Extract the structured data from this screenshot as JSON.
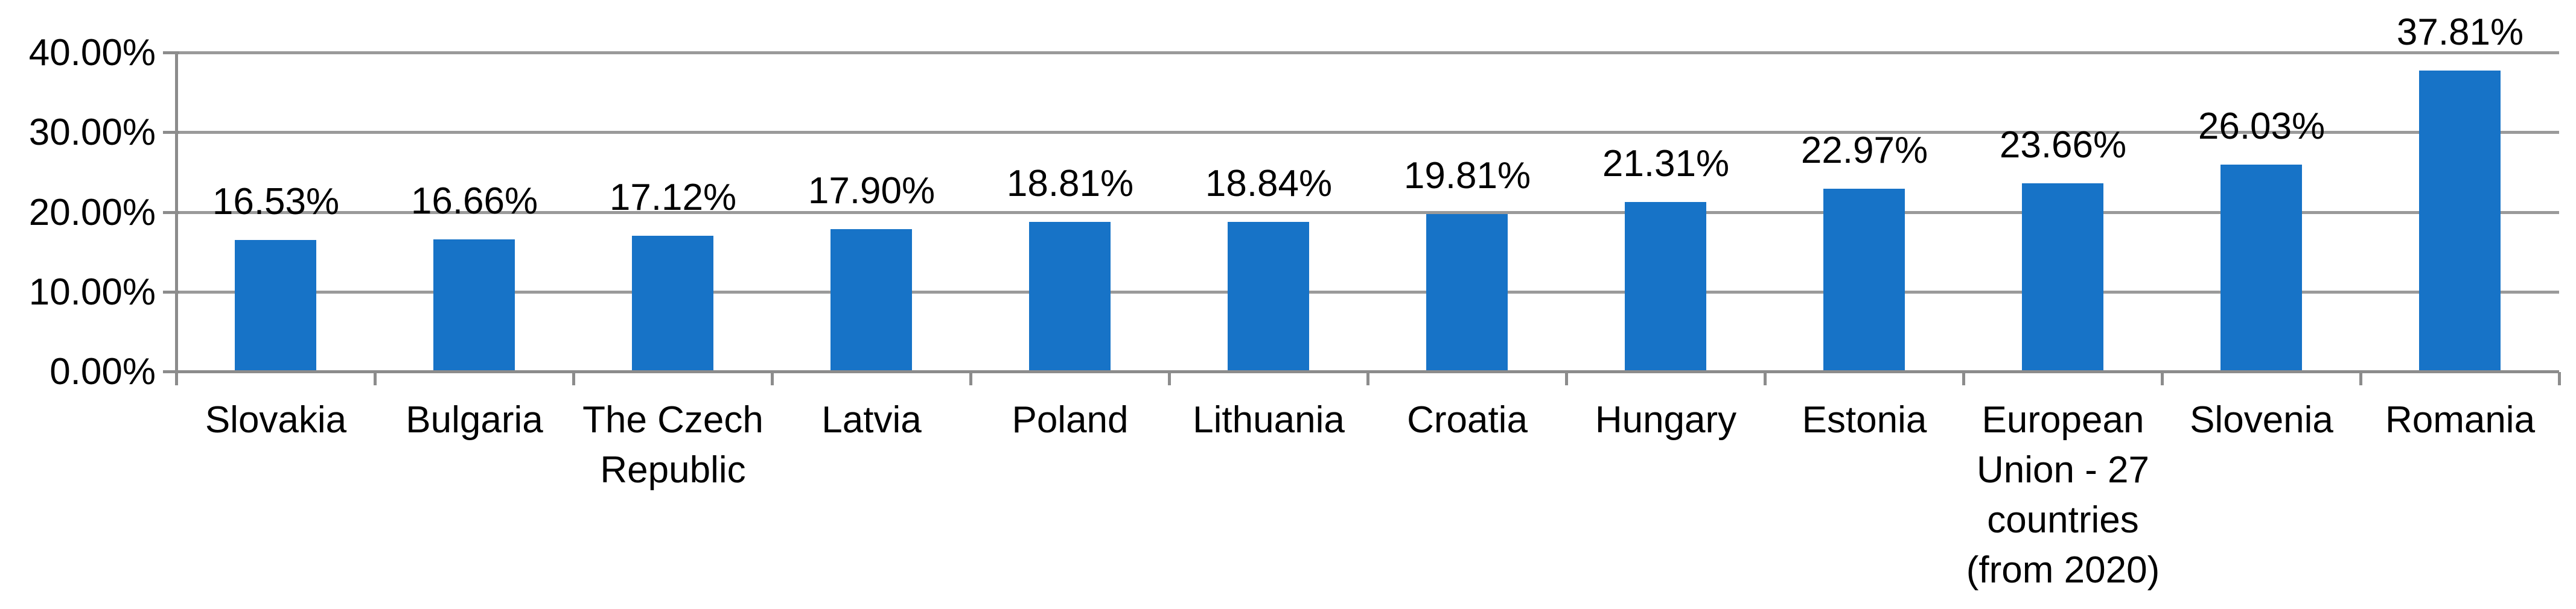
{
  "chart_data": {
    "type": "bar",
    "title": "",
    "xlabel": "",
    "ylabel": "",
    "categories": [
      "Slovakia",
      "Bulgaria",
      "The Czech Republic",
      "Latvia",
      "Poland",
      "Lithuania",
      "Croatia",
      "Hungary",
      "Estonia",
      "European Union - 27 countries (from 2020)",
      "Slovenia",
      "Romania"
    ],
    "values": [
      16.53,
      16.66,
      17.12,
      17.9,
      18.81,
      18.84,
      19.81,
      21.31,
      22.97,
      23.66,
      26.03,
      37.81
    ],
    "value_labels": [
      "16.53%",
      "16.66%",
      "17.12%",
      "17.90%",
      "18.81%",
      "18.84%",
      "19.81%",
      "21.31%",
      "22.97%",
      "23.66%",
      "26.03%",
      "37.81%"
    ],
    "ylim": [
      0,
      40
    ],
    "yticks": [
      0,
      10,
      20,
      30,
      40
    ],
    "ytick_labels": [
      "0.00%",
      "10.00%",
      "20.00%",
      "30.00%",
      "40.00%"
    ],
    "grid": true,
    "legend": false,
    "colors": {
      "bar": "#1773C7",
      "gridline": "#9A9A9A",
      "axis": "#8C8C8C",
      "text": "#000000",
      "background": "#FFFFFF"
    }
  }
}
